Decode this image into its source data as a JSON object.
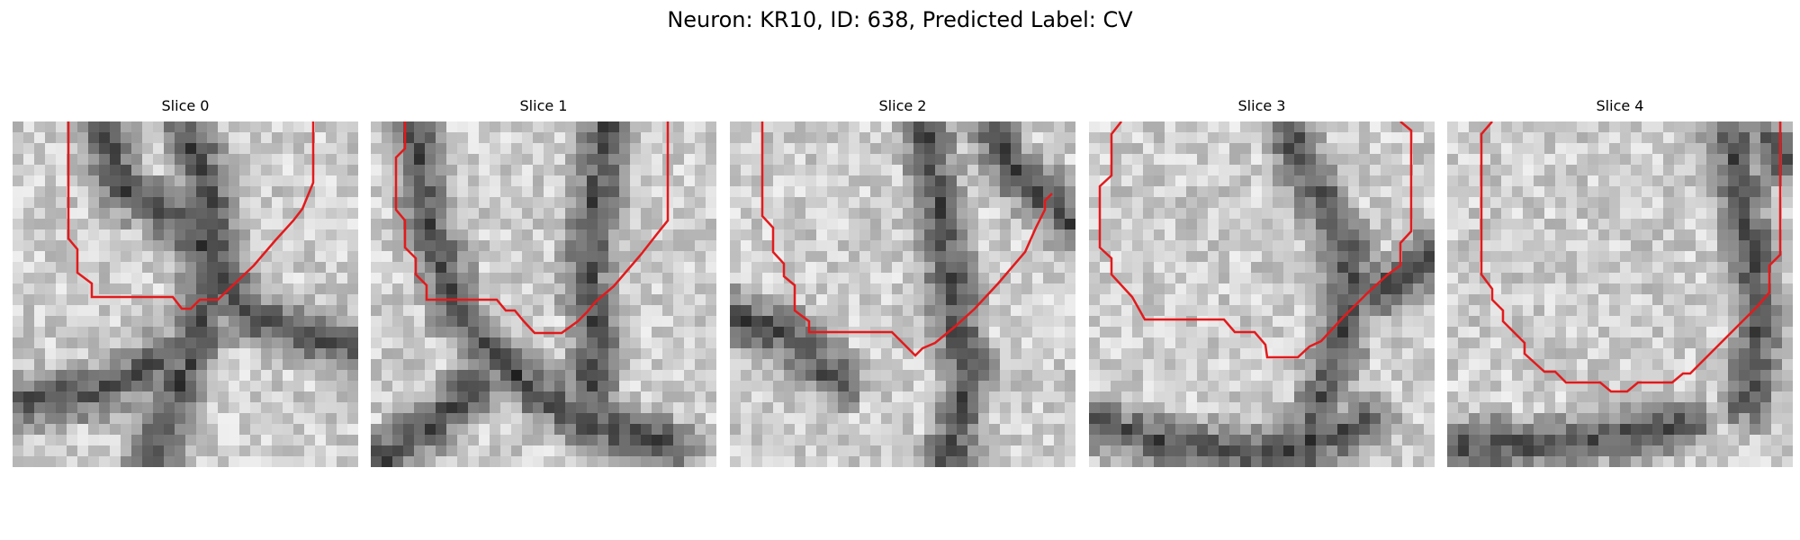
{
  "figure": {
    "title": "Neuron: KR10, ID: 638, Predicted Label: CV",
    "contour_color": "#e31a1c"
  },
  "panels": [
    {
      "title": "Slice 0"
    },
    {
      "title": "Slice 1"
    },
    {
      "title": "Slice 2"
    },
    {
      "title": "Slice 3"
    },
    {
      "title": "Slice 4"
    }
  ]
}
